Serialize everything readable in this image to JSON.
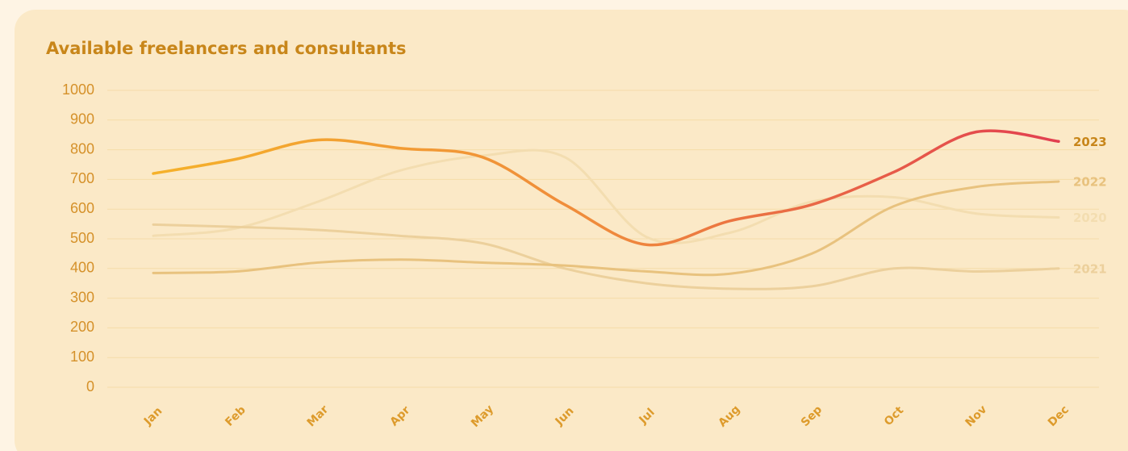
{
  "chart_data": {
    "type": "line",
    "title": "Available freelancers and consultants",
    "categories": [
      "Jan",
      "Feb",
      "Mar",
      "Apr",
      "May",
      "Jun",
      "Jul",
      "Aug",
      "Sep",
      "Oct",
      "Nov",
      "Dec"
    ],
    "series": [
      {
        "name": "2020",
        "color": "#f3ddb0",
        "values": [
          510,
          535,
          625,
          730,
          780,
          775,
          505,
          520,
          625,
          640,
          585,
          572
        ]
      },
      {
        "name": "2021",
        "color": "#ecd09c",
        "values": [
          548,
          540,
          530,
          510,
          485,
          400,
          350,
          332,
          340,
          400,
          390,
          400
        ]
      },
      {
        "name": "2022",
        "color": "#e8c27e",
        "values": [
          385,
          390,
          420,
          430,
          420,
          410,
          390,
          382,
          450,
          610,
          675,
          693
        ]
      },
      {
        "name": "2023",
        "color": "#c8861a",
        "gradient": [
          "#f5b12a",
          "#ef8a3c",
          "#e23f50"
        ],
        "values": [
          720,
          768,
          833,
          805,
          775,
          615,
          480,
          560,
          615,
          725,
          860,
          828
        ]
      }
    ],
    "ylim": [
      0,
      1000
    ],
    "yticks": [
      0,
      100,
      200,
      300,
      400,
      500,
      600,
      700,
      800,
      900,
      1000
    ],
    "grid": true
  }
}
